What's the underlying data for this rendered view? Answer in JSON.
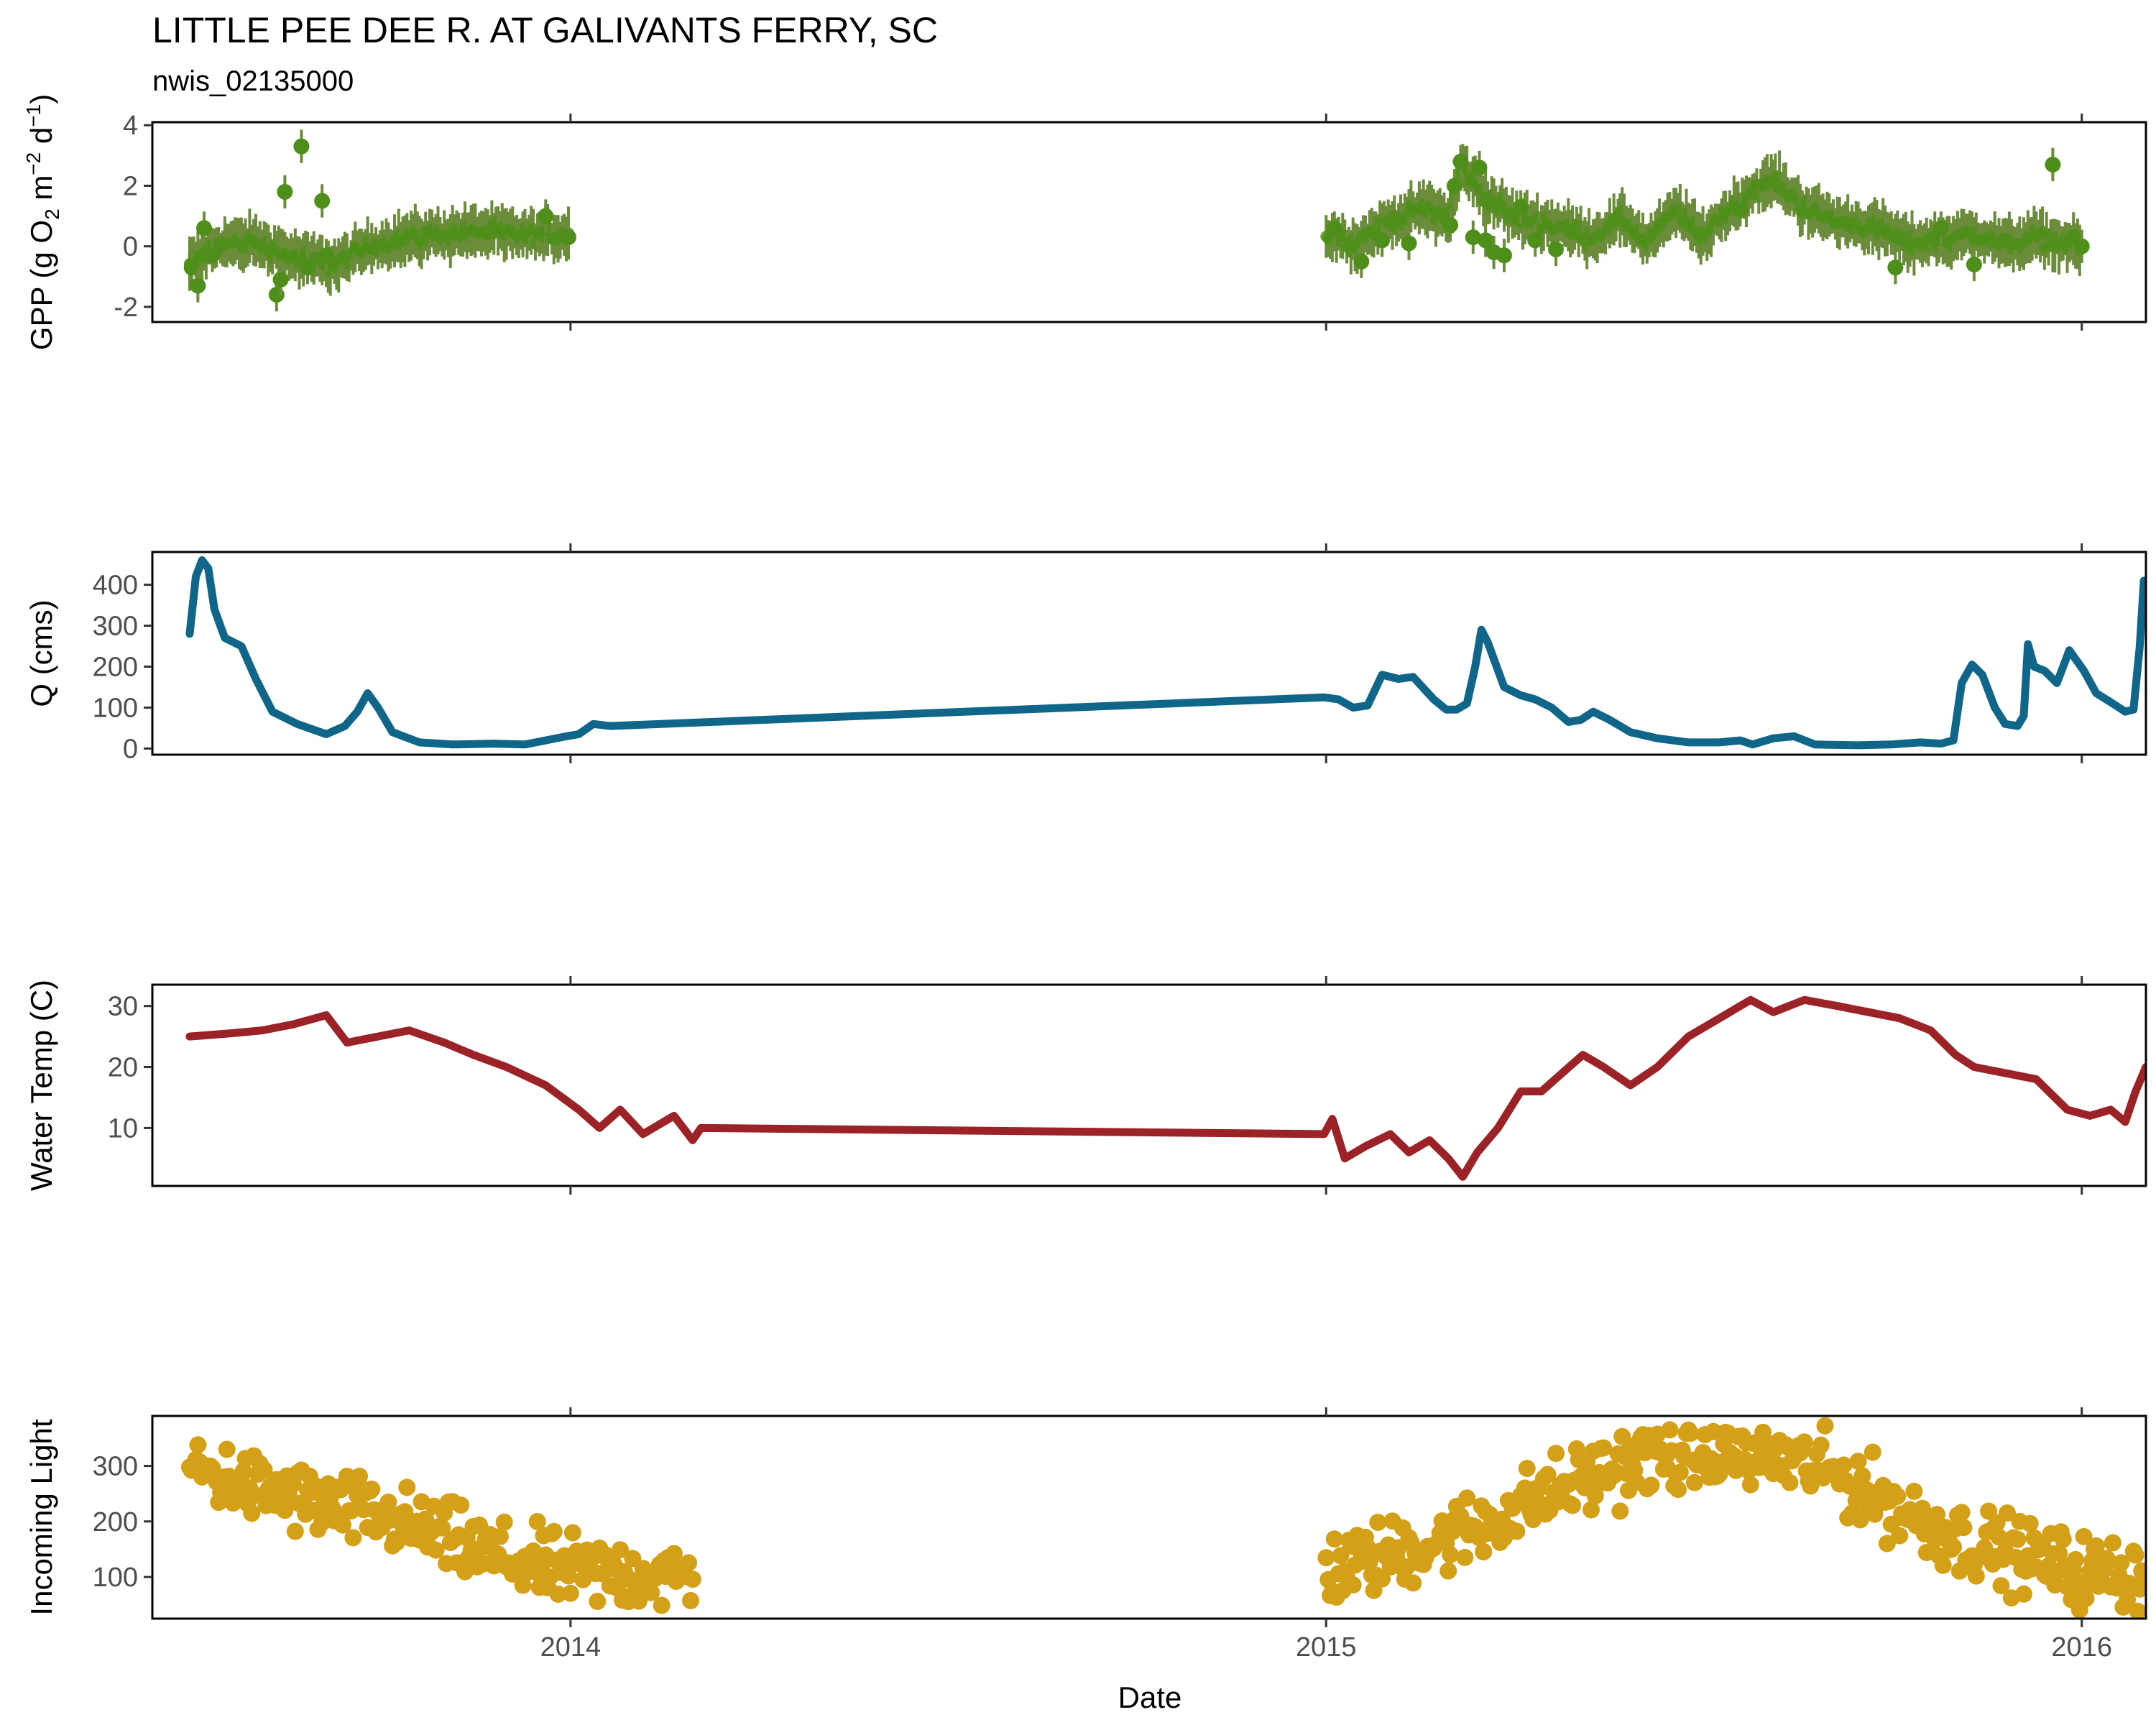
{
  "chart_data": {
    "title": "LITTLE PEE DEE R. AT GALIVANTS FERRY, SC",
    "subtitle": "nwis_02135000",
    "xlabel": "Date",
    "x_type": "date",
    "x_range": [
      "2013-06-13",
      "2016-02-01"
    ],
    "x_ticks": [
      {
        "date": "2014-01-01",
        "label": "2014"
      },
      {
        "date": "2015-01-01",
        "label": "2015"
      },
      {
        "date": "2016-01-01",
        "label": "2016"
      }
    ],
    "grid": false,
    "panels": [
      {
        "id": "gpp",
        "type": "scatter",
        "ylabel": "GPP (g  O2 m-2 d-1)",
        "ylabel_parts": {
          "pre": "GPP (g  O",
          "sub1": "2",
          "mid": " m",
          "sup1": "−2",
          "mid2": " d",
          "sup2": "−1",
          "post": ")"
        },
        "ylim": [
          -2.5,
          4.1
        ],
        "yticks": [
          -2,
          0,
          2,
          4
        ],
        "ytick_labels": [
          "-2",
          "0",
          "2",
          "4"
        ],
        "color": "#4d8f1a",
        "errorbar_color": "#6b8c3a",
        "anchors_low": [
          [
            "2013-07-01",
            -0.6
          ],
          [
            "2013-07-15",
            0.05
          ],
          [
            "2013-08-01",
            0.15
          ],
          [
            "2013-08-20",
            -0.35
          ],
          [
            "2013-09-10",
            -0.6
          ],
          [
            "2013-09-25",
            -0.05
          ],
          [
            "2013-10-15",
            0.3
          ],
          [
            "2013-11-01",
            0.4
          ],
          [
            "2013-11-20",
            0.5
          ],
          [
            "2013-12-10",
            0.35
          ],
          [
            "2013-12-31",
            0.4
          ]
        ],
        "anchors_high": [
          [
            "2015-01-01",
            0.4
          ],
          [
            "2015-01-15",
            0.1
          ],
          [
            "2015-02-01",
            0.8
          ],
          [
            "2015-02-20",
            1.3
          ],
          [
            "2015-03-01",
            0.9
          ],
          [
            "2015-03-08",
            2.6
          ],
          [
            "2015-03-20",
            1.6
          ],
          [
            "2015-04-01",
            1.0
          ],
          [
            "2015-04-20",
            0.7
          ],
          [
            "2015-05-10",
            0.3
          ],
          [
            "2015-05-25",
            0.9
          ],
          [
            "2015-06-05",
            0.1
          ],
          [
            "2015-06-20",
            1.2
          ],
          [
            "2015-07-01",
            0.3
          ],
          [
            "2015-07-20",
            1.5
          ],
          [
            "2015-08-05",
            2.2
          ],
          [
            "2015-08-20",
            1.3
          ],
          [
            "2015-09-05",
            0.8
          ],
          [
            "2015-09-25",
            0.6
          ],
          [
            "2015-10-10",
            0.1
          ],
          [
            "2015-10-25",
            0.2
          ],
          [
            "2015-11-10",
            0.4
          ],
          [
            "2015-11-25",
            0.05
          ],
          [
            "2015-12-10",
            0.3
          ],
          [
            "2015-12-31",
            0.0
          ]
        ],
        "outliers": [
          [
            "2013-07-02",
            -0.7
          ],
          [
            "2013-07-05",
            -1.3
          ],
          [
            "2013-07-08",
            0.6
          ],
          [
            "2013-07-12",
            -0.3
          ],
          [
            "2013-08-12",
            -1.6
          ],
          [
            "2013-08-14",
            -1.1
          ],
          [
            "2013-08-16",
            1.8
          ],
          [
            "2013-08-24",
            3.3
          ],
          [
            "2013-08-27",
            -0.7
          ],
          [
            "2013-09-03",
            1.5
          ],
          [
            "2013-09-05",
            -0.3
          ],
          [
            "2013-12-20",
            1.0
          ],
          [
            "2013-12-31",
            0.3
          ],
          [
            "2015-01-05",
            0.6
          ],
          [
            "2015-01-18",
            -0.5
          ],
          [
            "2015-01-28",
            0.2
          ],
          [
            "2015-02-10",
            0.1
          ],
          [
            "2015-03-02",
            0.7
          ],
          [
            "2015-03-04",
            2.0
          ],
          [
            "2015-03-07",
            2.8
          ],
          [
            "2015-03-13",
            0.3
          ],
          [
            "2015-03-16",
            2.6
          ],
          [
            "2015-03-19",
            0.2
          ],
          [
            "2015-03-23",
            -0.2
          ],
          [
            "2015-03-28",
            -0.3
          ],
          [
            "2015-04-05",
            1.3
          ],
          [
            "2015-04-12",
            0.2
          ],
          [
            "2015-04-22",
            -0.1
          ],
          [
            "2015-07-20",
            1.2
          ],
          [
            "2015-10-03",
            -0.7
          ],
          [
            "2015-10-25",
            0.6
          ],
          [
            "2015-11-10",
            -0.6
          ],
          [
            "2015-11-25",
            0.2
          ],
          [
            "2015-12-18",
            2.7
          ],
          [
            "2015-12-28",
            0.3
          ],
          [
            "2016-01-01",
            0.0
          ]
        ]
      },
      {
        "id": "q",
        "type": "line",
        "ylabel": "Q (cms)",
        "ylim": [
          -15,
          480
        ],
        "yticks": [
          0,
          100,
          200,
          300,
          400
        ],
        "ytick_labels": [
          "0",
          "100",
          "200",
          "300",
          "400"
        ],
        "color": "#0f6689",
        "points": [
          [
            "2013-07-01",
            280
          ],
          [
            "2013-07-04",
            420
          ],
          [
            "2013-07-07",
            460
          ],
          [
            "2013-07-10",
            440
          ],
          [
            "2013-07-13",
            340
          ],
          [
            "2013-07-18",
            270
          ],
          [
            "2013-07-26",
            250
          ],
          [
            "2013-08-02",
            170
          ],
          [
            "2013-08-10",
            90
          ],
          [
            "2013-08-22",
            60
          ],
          [
            "2013-09-05",
            35
          ],
          [
            "2013-09-14",
            55
          ],
          [
            "2013-09-20",
            90
          ],
          [
            "2013-09-25",
            135
          ],
          [
            "2013-09-30",
            100
          ],
          [
            "2013-10-07",
            40
          ],
          [
            "2013-10-20",
            15
          ],
          [
            "2013-11-05",
            10
          ],
          [
            "2013-11-25",
            12
          ],
          [
            "2013-12-10",
            10
          ],
          [
            "2013-12-20",
            20
          ],
          [
            "2013-12-30",
            30
          ],
          [
            "2014-01-05",
            35
          ],
          [
            "2014-01-12",
            60
          ],
          [
            "2014-01-20",
            55
          ],
          [
            "2014-12-31",
            125
          ],
          [
            "2015-01-07",
            120
          ],
          [
            "2015-01-14",
            100
          ],
          [
            "2015-01-21",
            105
          ],
          [
            "2015-01-28",
            180
          ],
          [
            "2015-02-05",
            170
          ],
          [
            "2015-02-12",
            175
          ],
          [
            "2015-02-22",
            120
          ],
          [
            "2015-02-28",
            95
          ],
          [
            "2015-03-05",
            95
          ],
          [
            "2015-03-10",
            110
          ],
          [
            "2015-03-14",
            200
          ],
          [
            "2015-03-17",
            290
          ],
          [
            "2015-03-20",
            260
          ],
          [
            "2015-03-28",
            150
          ],
          [
            "2015-04-05",
            130
          ],
          [
            "2015-04-12",
            120
          ],
          [
            "2015-04-20",
            100
          ],
          [
            "2015-04-28",
            65
          ],
          [
            "2015-05-04",
            70
          ],
          [
            "2015-05-10",
            90
          ],
          [
            "2015-05-18",
            70
          ],
          [
            "2015-05-28",
            40
          ],
          [
            "2015-06-10",
            25
          ],
          [
            "2015-06-25",
            15
          ],
          [
            "2015-07-10",
            15
          ],
          [
            "2015-07-20",
            20
          ],
          [
            "2015-07-26",
            10
          ],
          [
            "2015-08-05",
            25
          ],
          [
            "2015-08-15",
            30
          ],
          [
            "2015-08-25",
            10
          ],
          [
            "2015-09-15",
            8
          ],
          [
            "2015-10-01",
            10
          ],
          [
            "2015-10-15",
            15
          ],
          [
            "2015-10-25",
            12
          ],
          [
            "2015-10-31",
            20
          ],
          [
            "2015-11-04",
            160
          ],
          [
            "2015-11-09",
            205
          ],
          [
            "2015-11-14",
            180
          ],
          [
            "2015-11-20",
            100
          ],
          [
            "2015-11-25",
            60
          ],
          [
            "2015-12-01",
            55
          ],
          [
            "2015-12-04",
            80
          ],
          [
            "2015-12-06",
            255
          ],
          [
            "2015-12-09",
            200
          ],
          [
            "2015-12-14",
            190
          ],
          [
            "2015-12-20",
            160
          ],
          [
            "2015-12-26",
            240
          ],
          [
            "2016-01-02",
            190
          ],
          [
            "2016-01-08",
            135
          ],
          [
            "2016-01-16",
            110
          ],
          [
            "2016-01-22",
            90
          ],
          [
            "2016-01-26",
            95
          ],
          [
            "2016-01-29",
            250
          ],
          [
            "2016-01-31",
            410
          ],
          [
            "2016-02-01",
            405
          ]
        ]
      },
      {
        "id": "temp",
        "type": "line",
        "ylabel": "Water Temp (C)",
        "ylim": [
          0.5,
          33.5
        ],
        "yticks": [
          10,
          20,
          30
        ],
        "ytick_labels": [
          "10",
          "20",
          "30"
        ],
        "color": "#9b2226",
        "points": [
          [
            "2013-07-01",
            25
          ],
          [
            "2013-07-20",
            25.5
          ],
          [
            "2013-08-05",
            26
          ],
          [
            "2013-08-20",
            27
          ],
          [
            "2013-09-05",
            28.5
          ],
          [
            "2013-09-15",
            24
          ],
          [
            "2013-09-30",
            25
          ],
          [
            "2013-10-15",
            26
          ],
          [
            "2013-11-01",
            24
          ],
          [
            "2013-11-15",
            22
          ],
          [
            "2013-12-01",
            20
          ],
          [
            "2013-12-20",
            17
          ],
          [
            "2014-01-05",
            13
          ],
          [
            "2014-01-15",
            10
          ],
          [
            "2014-01-25",
            13
          ],
          [
            "2014-02-05",
            9
          ],
          [
            "2014-02-20",
            12
          ],
          [
            "2014-03-01",
            8
          ],
          [
            "2014-03-05",
            10
          ],
          [
            "2014-12-31",
            9
          ],
          [
            "2015-01-04",
            11.5
          ],
          [
            "2015-01-10",
            5
          ],
          [
            "2015-01-20",
            7
          ],
          [
            "2015-02-01",
            9
          ],
          [
            "2015-02-10",
            6
          ],
          [
            "2015-02-20",
            8
          ],
          [
            "2015-03-01",
            5
          ],
          [
            "2015-03-08",
            2
          ],
          [
            "2015-03-15",
            6
          ],
          [
            "2015-03-25",
            10
          ],
          [
            "2015-04-05",
            16
          ],
          [
            "2015-04-15",
            16
          ],
          [
            "2015-04-25",
            19
          ],
          [
            "2015-05-05",
            22
          ],
          [
            "2015-05-15",
            20
          ],
          [
            "2015-05-28",
            17
          ],
          [
            "2015-06-10",
            20
          ],
          [
            "2015-06-25",
            25
          ],
          [
            "2015-07-10",
            28
          ],
          [
            "2015-07-25",
            31
          ],
          [
            "2015-08-05",
            29
          ],
          [
            "2015-08-20",
            31
          ],
          [
            "2015-09-05",
            30
          ],
          [
            "2015-09-20",
            29
          ],
          [
            "2015-10-05",
            28
          ],
          [
            "2015-10-20",
            26
          ],
          [
            "2015-11-01",
            22
          ],
          [
            "2015-11-10",
            20
          ],
          [
            "2015-11-25",
            19
          ],
          [
            "2015-12-10",
            18
          ],
          [
            "2015-12-25",
            13
          ],
          [
            "2016-01-05",
            12
          ],
          [
            "2016-01-15",
            13
          ],
          [
            "2016-01-22",
            11
          ],
          [
            "2016-01-27",
            16
          ],
          [
            "2016-02-01",
            20
          ]
        ]
      },
      {
        "id": "light",
        "type": "scatter",
        "ylabel": "Incoming Light",
        "ylim": [
          25,
          390
        ],
        "yticks": [
          100,
          200,
          300
        ],
        "ytick_labels": [
          "100",
          "200",
          "300"
        ],
        "color": "#d4a017",
        "anchors_low": [
          [
            "2013-07-01",
            300
          ],
          [
            "2013-08-01",
            260
          ],
          [
            "2013-09-01",
            230
          ],
          [
            "2013-10-01",
            210
          ],
          [
            "2013-11-01",
            170
          ],
          [
            "2013-12-01",
            130
          ],
          [
            "2014-01-01",
            110
          ],
          [
            "2014-03-01",
            100
          ]
        ],
        "anchors_high": [
          [
            "2015-01-01",
            110
          ],
          [
            "2015-02-01",
            140
          ],
          [
            "2015-03-01",
            170
          ],
          [
            "2015-04-01",
            220
          ],
          [
            "2015-05-01",
            270
          ],
          [
            "2015-06-01",
            310
          ],
          [
            "2015-07-01",
            320
          ],
          [
            "2015-08-01",
            320
          ],
          [
            "2015-09-01",
            290
          ],
          [
            "2015-10-01",
            230
          ],
          [
            "2015-11-01",
            170
          ],
          [
            "2015-12-01",
            140
          ],
          [
            "2016-01-01",
            110
          ],
          [
            "2016-02-01",
            100
          ]
        ]
      }
    ]
  }
}
